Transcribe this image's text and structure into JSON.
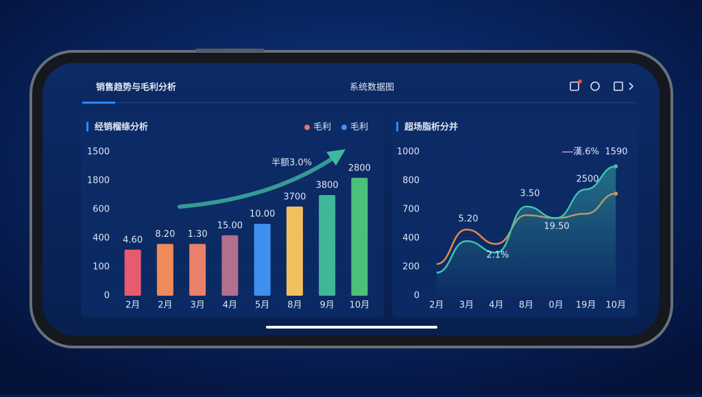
{
  "header": {
    "title": "销售趋势与毛利分析",
    "badge": "系统数据图"
  },
  "chart_data": [
    {
      "type": "bar",
      "title": "经销榴绦分析",
      "legend": [
        {
          "name": "毛利",
          "color": "#e8765a"
        },
        {
          "name": "毛利",
          "color": "#4a8ff0"
        }
      ],
      "categories": [
        "2月",
        "2月",
        "3月",
        "4月",
        "5月",
        "8月",
        "9月",
        "10月"
      ],
      "values": [
        1.6,
        1.8,
        1.8,
        2.1,
        2.5,
        3.1,
        3.5,
        4.1
      ],
      "value_labels": [
        "4.60",
        "8.20",
        "1.30",
        "15.00",
        "10.00",
        "3700",
        "3800",
        "2800"
      ],
      "colors": [
        "#e85a6e",
        "#f08a5a",
        "#e8806a",
        "#b0708e",
        "#3f8ff0",
        "#f0c060",
        "#3fb89a",
        "#4cc07a"
      ],
      "label_colors": [
        "#f07a6a",
        "#f0a050",
        "#f0a050",
        "#e88aa0",
        "#4aa8f8",
        "#f0c060",
        "#e0e6f0",
        "#e0e6f0"
      ],
      "ylim": [
        0,
        5
      ],
      "yticks": [
        0,
        {
          "value": 1,
          "label": "100"
        },
        {
          "value": 2,
          "label": "400"
        },
        {
          "value": 3,
          "label": "600"
        },
        {
          "value": 4,
          "label": "1800"
        },
        {
          "value": 5,
          "label": "1500"
        }
      ],
      "annotation": "半额3.0%"
    },
    {
      "type": "line",
      "title": "超场脂析分并",
      "categories": [
        "2月",
        "3月",
        "4月",
        "8月",
        "0月",
        "19月",
        "10月"
      ],
      "series": [
        {
          "color": "#e8884a",
          "values": [
            1.1,
            2.3,
            1.8,
            2.8,
            2.7,
            2.85,
            3.55
          ]
        },
        {
          "color": "#3fc1b0",
          "values": [
            0.8,
            1.9,
            1.5,
            3.1,
            2.7,
            3.7,
            4.5
          ]
        }
      ],
      "ylim": [
        0,
        5
      ],
      "yticks": [
        0,
        {
          "value": 1,
          "label": "200"
        },
        {
          "value": 2,
          "label": "400"
        },
        {
          "value": 3,
          "label": "700"
        },
        {
          "value": 4,
          "label": "800"
        },
        {
          "value": 5,
          "label": "1000"
        }
      ],
      "annotations": [
        "5.20",
        "2.1%",
        "3.50",
        "19.50",
        "2500",
        "1590",
        "漢.6%"
      ]
    }
  ]
}
